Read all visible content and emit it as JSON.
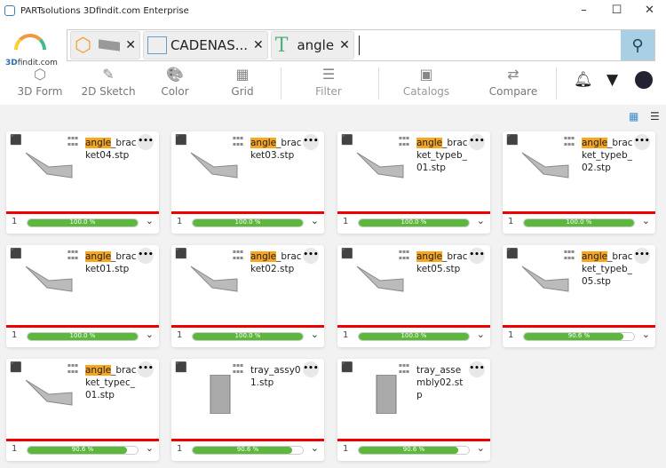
{
  "window": {
    "title": "PARTsolutions 3Dfindit.com Enterprise",
    "minimize": "–",
    "maximize": "☐",
    "close": "✕"
  },
  "logo": {
    "prefix": "3D",
    "name": "findit",
    ".suffix": ".com",
    "suffix": ".com"
  },
  "search": {
    "chips": [
      {
        "type": "3d-shape",
        "label": ""
      },
      {
        "type": "catalog",
        "label": "CADENAS..."
      },
      {
        "type": "text",
        "label": "angle"
      }
    ],
    "value": "",
    "button": "search"
  },
  "toolbar": {
    "items": [
      {
        "label": "3D Form",
        "icon": "⬡"
      },
      {
        "label": "2D Sketch",
        "icon": "✎"
      },
      {
        "label": "Color",
        "icon": "🎨"
      },
      {
        "label": "Grid",
        "icon": "▦"
      },
      {
        "label": "Filter",
        "icon": "☰"
      },
      {
        "label": "Catalogs",
        "icon": "▣"
      },
      {
        "label": "Compare",
        "icon": "⇄"
      }
    ],
    "right": [
      "bell",
      "filter",
      "avatar"
    ]
  },
  "colors": {
    "highlight": "#f5a623",
    "progress": "#5cb83c",
    "divider": "#e00000",
    "search_button": "#a8cfe3"
  },
  "results": [
    {
      "highlight": "angle",
      "rest": "_bracket04.stp",
      "count": "1",
      "match": 100,
      "match_label": "100.0 %"
    },
    {
      "highlight": "angle",
      "rest": "_bracket03.stp",
      "count": "1",
      "match": 100,
      "match_label": "100.0 %"
    },
    {
      "highlight": "angle",
      "rest": "_bracket_typeb_01.stp",
      "count": "1",
      "match": 100,
      "match_label": "100.0 %"
    },
    {
      "highlight": "angle",
      "rest": "_bracket_typeb_02.stp",
      "count": "1",
      "match": 100,
      "match_label": "100.0 %"
    },
    {
      "highlight": "angle",
      "rest": "_bracket01.stp",
      "count": "1",
      "match": 100,
      "match_label": "100.0 %"
    },
    {
      "highlight": "angle",
      "rest": "_bracket02.stp",
      "count": "1",
      "match": 100,
      "match_label": "100.0 %"
    },
    {
      "highlight": "angle",
      "rest": "_bracket05.stp",
      "count": "1",
      "match": 100,
      "match_label": "100.0 %"
    },
    {
      "highlight": "angle",
      "rest": "_bracket_typeb_05.stp",
      "count": "1",
      "match": 90.6,
      "match_label": "90.6 %"
    },
    {
      "highlight": "angle",
      "rest": "_bracket_typec_01.stp",
      "count": "1",
      "match": 90.6,
      "match_label": "90.6 %"
    },
    {
      "highlight": "",
      "rest": "tray_assy01.stp",
      "count": "1",
      "match": 90.6,
      "match_label": "90.6 %"
    },
    {
      "highlight": "",
      "rest": "tray_assembly02.stp",
      "count": "1",
      "match": 90.6,
      "match_label": "90.6 %"
    }
  ]
}
